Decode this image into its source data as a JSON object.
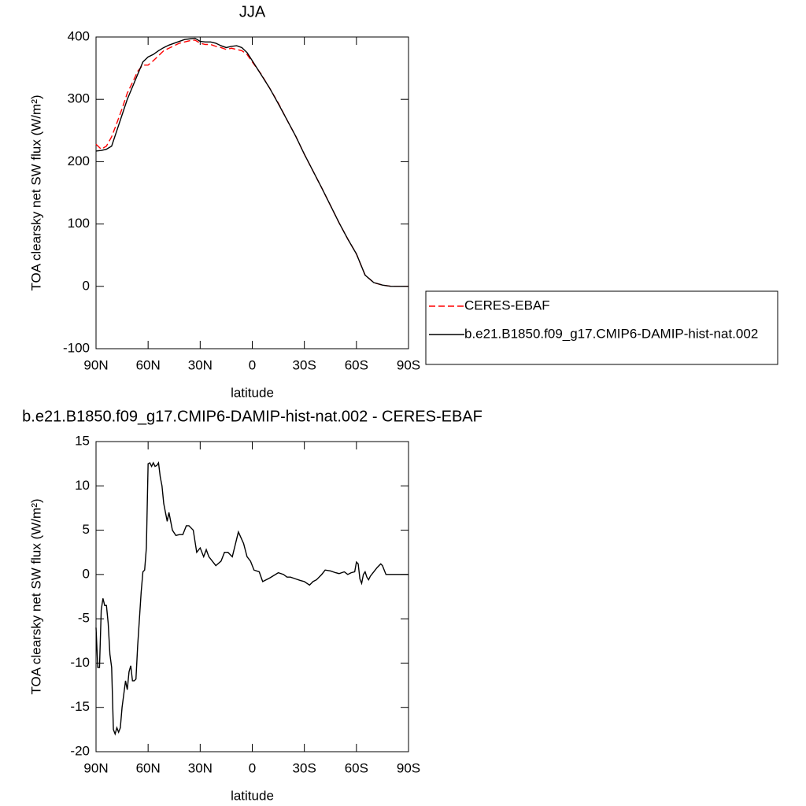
{
  "chart_data": [
    {
      "type": "line",
      "title": "JJA",
      "xlabel": "latitude",
      "ylabel": "TOA clearsky net SW flux (W/m²)",
      "x": [
        90,
        87,
        84,
        81,
        78,
        75,
        72,
        69,
        66,
        63,
        60,
        57,
        54,
        51,
        48,
        45,
        42,
        39,
        36,
        33,
        30,
        27,
        24,
        21,
        18,
        15,
        12,
        9,
        6,
        3,
        0,
        -5,
        -10,
        -15,
        -20,
        -25,
        -30,
        -35,
        -40,
        -45,
        -50,
        -55,
        -60,
        -65,
        -70,
        -75,
        -80,
        -85,
        -90
      ],
      "series": [
        {
          "name": "CERES-EBAF",
          "color": "#ff0000",
          "dash": true,
          "values": [
            228,
            220,
            225,
            240,
            262,
            285,
            310,
            327,
            345,
            355,
            355,
            362,
            370,
            378,
            382,
            386,
            390,
            392,
            394,
            395,
            390,
            388,
            388,
            385,
            383,
            380,
            382,
            380,
            378,
            372,
            360,
            341,
            318,
            294,
            267,
            241,
            212,
            185,
            158,
            130,
            102,
            76,
            52,
            18,
            6,
            2,
            0,
            0,
            0
          ]
        },
        {
          "name": "b.e21.B1850.f09_g17.CMIP6-DAMIP-hist-nat.002",
          "color": "#000000",
          "dash": false,
          "values": [
            217,
            218,
            220,
            225,
            250,
            275,
            300,
            320,
            340,
            360,
            368,
            372,
            378,
            383,
            387,
            390,
            393,
            396,
            397,
            398,
            393,
            392,
            392,
            390,
            386,
            383,
            385,
            386,
            383,
            375,
            362,
            340,
            318,
            293,
            267,
            241,
            212,
            185,
            158,
            130,
            102,
            76,
            52,
            18,
            6,
            2,
            0,
            0,
            0
          ]
        }
      ],
      "xlim": [
        90,
        -90
      ],
      "xticks": [
        {
          "value": 90,
          "label": "90N"
        },
        {
          "value": 60,
          "label": "60N"
        },
        {
          "value": 30,
          "label": "30N"
        },
        0,
        {
          "value": -30,
          "label": "30S"
        },
        {
          "value": -60,
          "label": "60S"
        },
        {
          "value": -90,
          "label": "90S"
        }
      ],
      "ylim": [
        -100,
        400
      ],
      "yticks": [
        -100,
        0,
        100,
        200,
        300,
        400
      ],
      "legend": "right"
    },
    {
      "type": "line",
      "title": "b.e21.B1850.f09_g17.CMIP6-DAMIP-hist-nat.002 - CERES-EBAF",
      "xlabel": "latitude",
      "ylabel": "TOA clearsky net SW flux (W/m²)",
      "x": [
        90,
        89,
        88,
        87,
        86,
        85,
        84,
        83,
        82,
        81,
        80,
        79,
        78,
        77,
        76,
        75,
        74,
        73,
        72,
        71,
        70,
        69,
        68,
        67,
        66,
        65,
        64,
        63,
        62,
        61,
        60,
        59,
        58,
        57,
        56,
        55,
        54,
        53,
        52,
        51,
        50,
        49,
        48,
        46,
        44,
        42,
        40,
        38,
        36.5,
        34,
        32,
        30,
        28,
        26.5,
        25,
        23,
        21,
        18,
        16,
        14,
        11.5,
        8,
        5,
        3,
        1,
        -1,
        -4,
        -6,
        -8,
        -10,
        -15,
        -18,
        -20,
        -22,
        -25,
        -28,
        -30,
        -33,
        -35,
        -37,
        -40,
        -42,
        -45,
        -48,
        -50,
        -53,
        -55,
        -57,
        -59,
        -60,
        -61,
        -62,
        -63,
        -64,
        -65,
        -66,
        -67,
        -68,
        -70,
        -72,
        -74,
        -75,
        -76,
        -77,
        -80,
        -90
      ],
      "series": [
        {
          "color": "#000000",
          "dash": false,
          "values": [
            -6,
            -10.5,
            -10.5,
            -4,
            -2.7,
            -3.5,
            -3.5,
            -5.5,
            -9,
            -10.5,
            -17.5,
            -18,
            -17.3,
            -17.8,
            -17.3,
            -15,
            -13.5,
            -12,
            -13,
            -11,
            -10.3,
            -12,
            -12,
            -11.8,
            -8,
            -5,
            -2,
            0.3,
            0.5,
            3,
            12.5,
            12.6,
            12.2,
            12.6,
            12.2,
            12.3,
            12.6,
            11,
            10,
            8,
            7,
            6,
            7,
            5,
            4.4,
            4.5,
            4.5,
            5.5,
            5.5,
            5,
            2.5,
            3,
            2,
            2.8,
            2,
            1.5,
            1,
            1.5,
            2.5,
            2.5,
            2,
            4.8,
            3.5,
            2,
            1.5,
            0.5,
            0.3,
            -0.8,
            -0.6,
            -0.4,
            0.2,
            0,
            -0.3,
            -0.3,
            -0.5,
            -0.7,
            -0.8,
            -1.2,
            -0.8,
            -0.6,
            0,
            0.5,
            0.4,
            0.2,
            0.1,
            0.3,
            0,
            0.2,
            0.3,
            1.4,
            1.2,
            -0.5,
            -1,
            0,
            0.3,
            -0.3,
            -0.6,
            -0.2,
            0.3,
            0.8,
            1.2,
            1,
            0.5,
            0,
            0,
            0
          ]
        }
      ],
      "xlim": [
        90,
        -90
      ],
      "xticks": [
        {
          "value": 90,
          "label": "90N"
        },
        {
          "value": 60,
          "label": "60N"
        },
        {
          "value": 30,
          "label": "30N"
        },
        0,
        {
          "value": -30,
          "label": "30S"
        },
        {
          "value": -60,
          "label": "60S"
        },
        {
          "value": -90,
          "label": "90S"
        }
      ],
      "ylim": [
        -20,
        15
      ],
      "yticks": [
        -20,
        -15,
        -10,
        -5,
        0,
        5,
        10,
        15
      ]
    }
  ]
}
